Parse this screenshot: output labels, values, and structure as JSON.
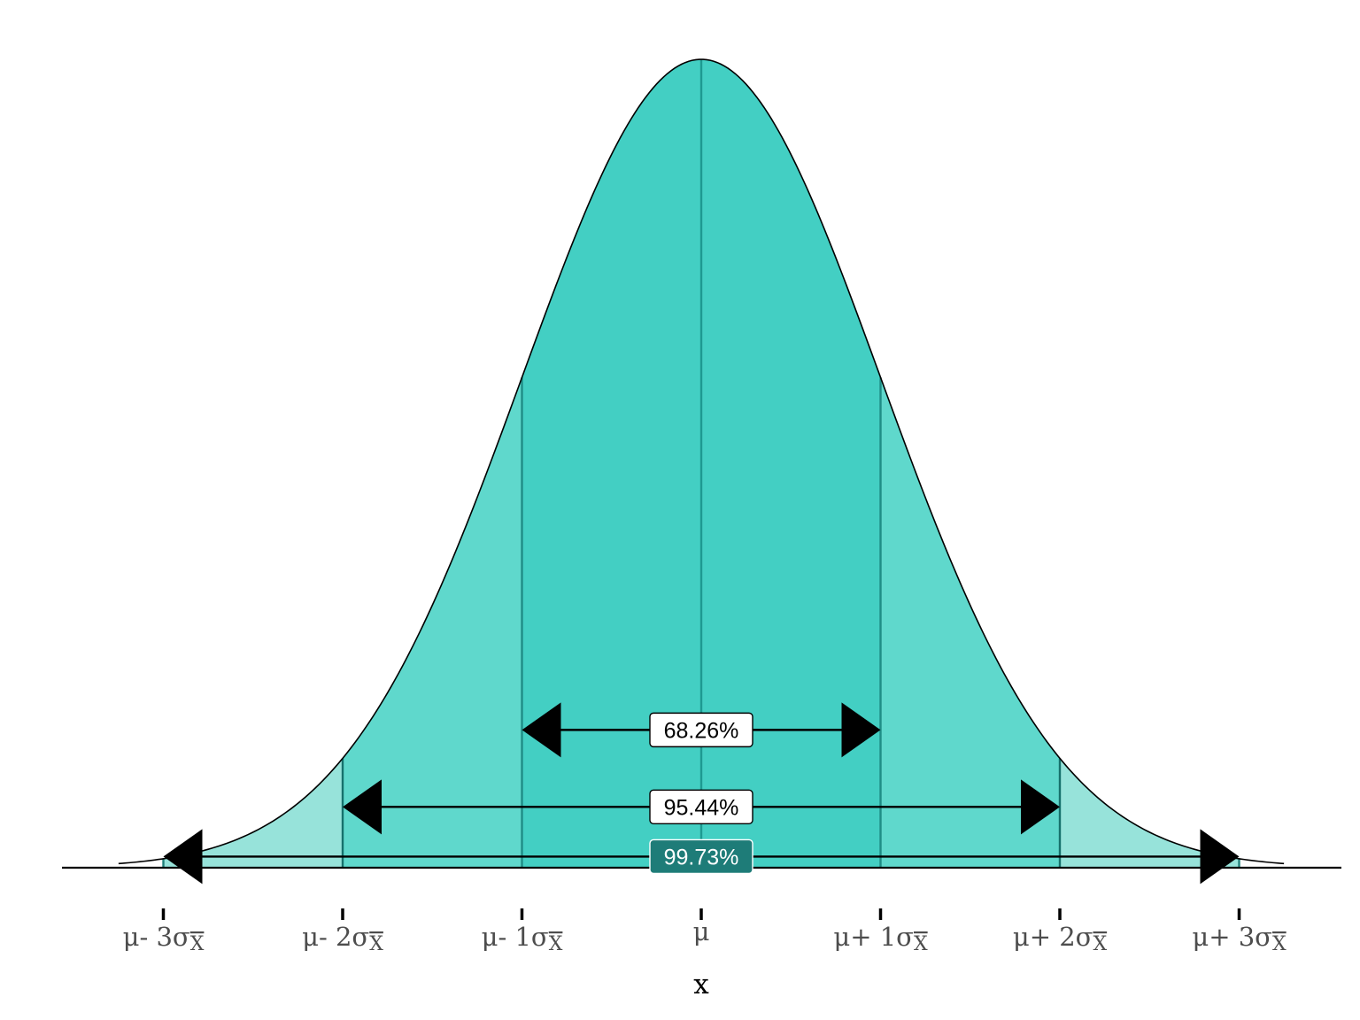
{
  "chart_data": {
    "type": "area",
    "distribution": "normal",
    "mean": 0,
    "sd": 1,
    "xlim": [
      -3.25,
      3.25
    ],
    "xlabel": "x",
    "ticks": [
      {
        "value": -3,
        "label": "μ- 3σ",
        "sub": "X"
      },
      {
        "value": -2,
        "label": "μ- 2σ",
        "sub": "X"
      },
      {
        "value": -1,
        "label": "μ- 1σ",
        "sub": "X"
      },
      {
        "value": 0,
        "label": "μ",
        "sub": ""
      },
      {
        "value": 1,
        "label": "μ+ 1σ",
        "sub": "X"
      },
      {
        "value": 2,
        "label": "μ+ 2σ",
        "sub": "X"
      },
      {
        "value": 3,
        "label": "μ+ 3σ",
        "sub": "X"
      }
    ],
    "regions": [
      {
        "from": -3,
        "to": 3,
        "color": "#97e3da"
      },
      {
        "from": -2,
        "to": 2,
        "color": "#5fd8cc"
      },
      {
        "from": -1,
        "to": 1,
        "color": "#43cfc3"
      }
    ],
    "intervals": [
      {
        "from": -1,
        "to": 1,
        "label": "68.26%",
        "y_density": 0.068,
        "label_fill": "#ffffff",
        "label_text": "#000000"
      },
      {
        "from": -2,
        "to": 2,
        "label": "95.44%",
        "y_density": 0.03,
        "label_fill": "#ffffff",
        "label_text": "#000000"
      },
      {
        "from": -3,
        "to": 3,
        "label": "99.73%",
        "y_density": 0.0055,
        "label_fill": "#1e7c78",
        "label_text": "#ffffff"
      }
    ]
  }
}
